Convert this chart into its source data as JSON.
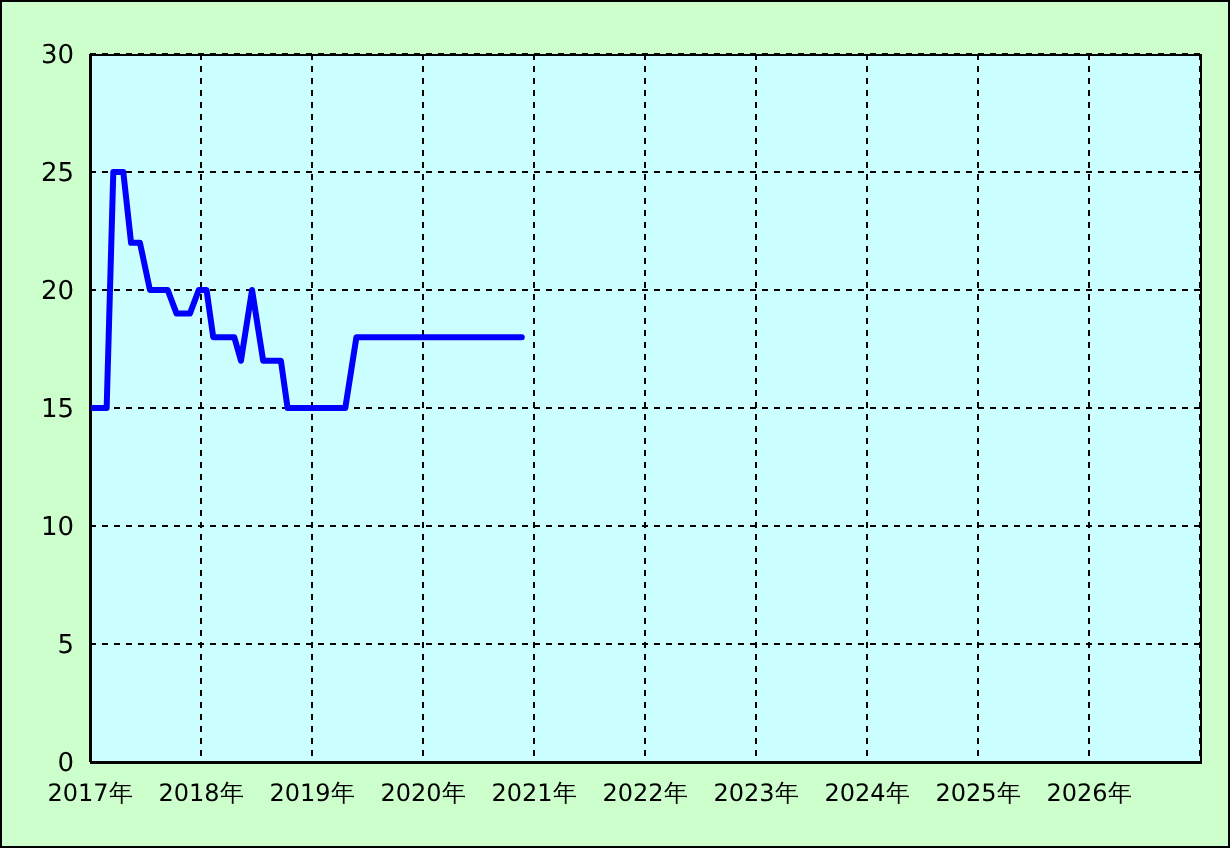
{
  "chart_data": {
    "type": "line",
    "x": [
      2017.0,
      2017.15,
      2017.21,
      2017.3,
      2017.37,
      2017.45,
      2017.54,
      2017.7,
      2017.78,
      2017.9,
      2017.98,
      2018.05,
      2018.11,
      2018.3,
      2018.36,
      2018.46,
      2018.56,
      2018.72,
      2018.78,
      2019.3,
      2019.4,
      2020.89
    ],
    "series": [
      {
        "color": "#0000ff",
        "values": [
          15,
          15,
          25,
          25,
          22,
          22,
          20,
          20,
          19,
          19,
          20,
          20,
          18,
          18,
          17,
          20,
          17,
          17,
          15,
          15,
          18,
          18
        ]
      }
    ],
    "xlim": [
      2017,
      2027
    ],
    "xticks": [
      {
        "value": 2017,
        "label": "2017年"
      },
      {
        "value": 2018,
        "label": "2018年"
      },
      {
        "value": 2019,
        "label": "2019年"
      },
      {
        "value": 2020,
        "label": "2020年"
      },
      {
        "value": 2021,
        "label": "2021年"
      },
      {
        "value": 2022,
        "label": "2022年"
      },
      {
        "value": 2023,
        "label": "2023年"
      },
      {
        "value": 2024,
        "label": "2024年"
      },
      {
        "value": 2025,
        "label": "2025年"
      },
      {
        "value": 2026,
        "label": "2026年"
      }
    ],
    "ylim": [
      0,
      30
    ],
    "yticks": [
      0,
      5,
      10,
      15,
      20,
      25,
      30
    ],
    "grid": true,
    "marker": "none",
    "line_style": "solid"
  }
}
